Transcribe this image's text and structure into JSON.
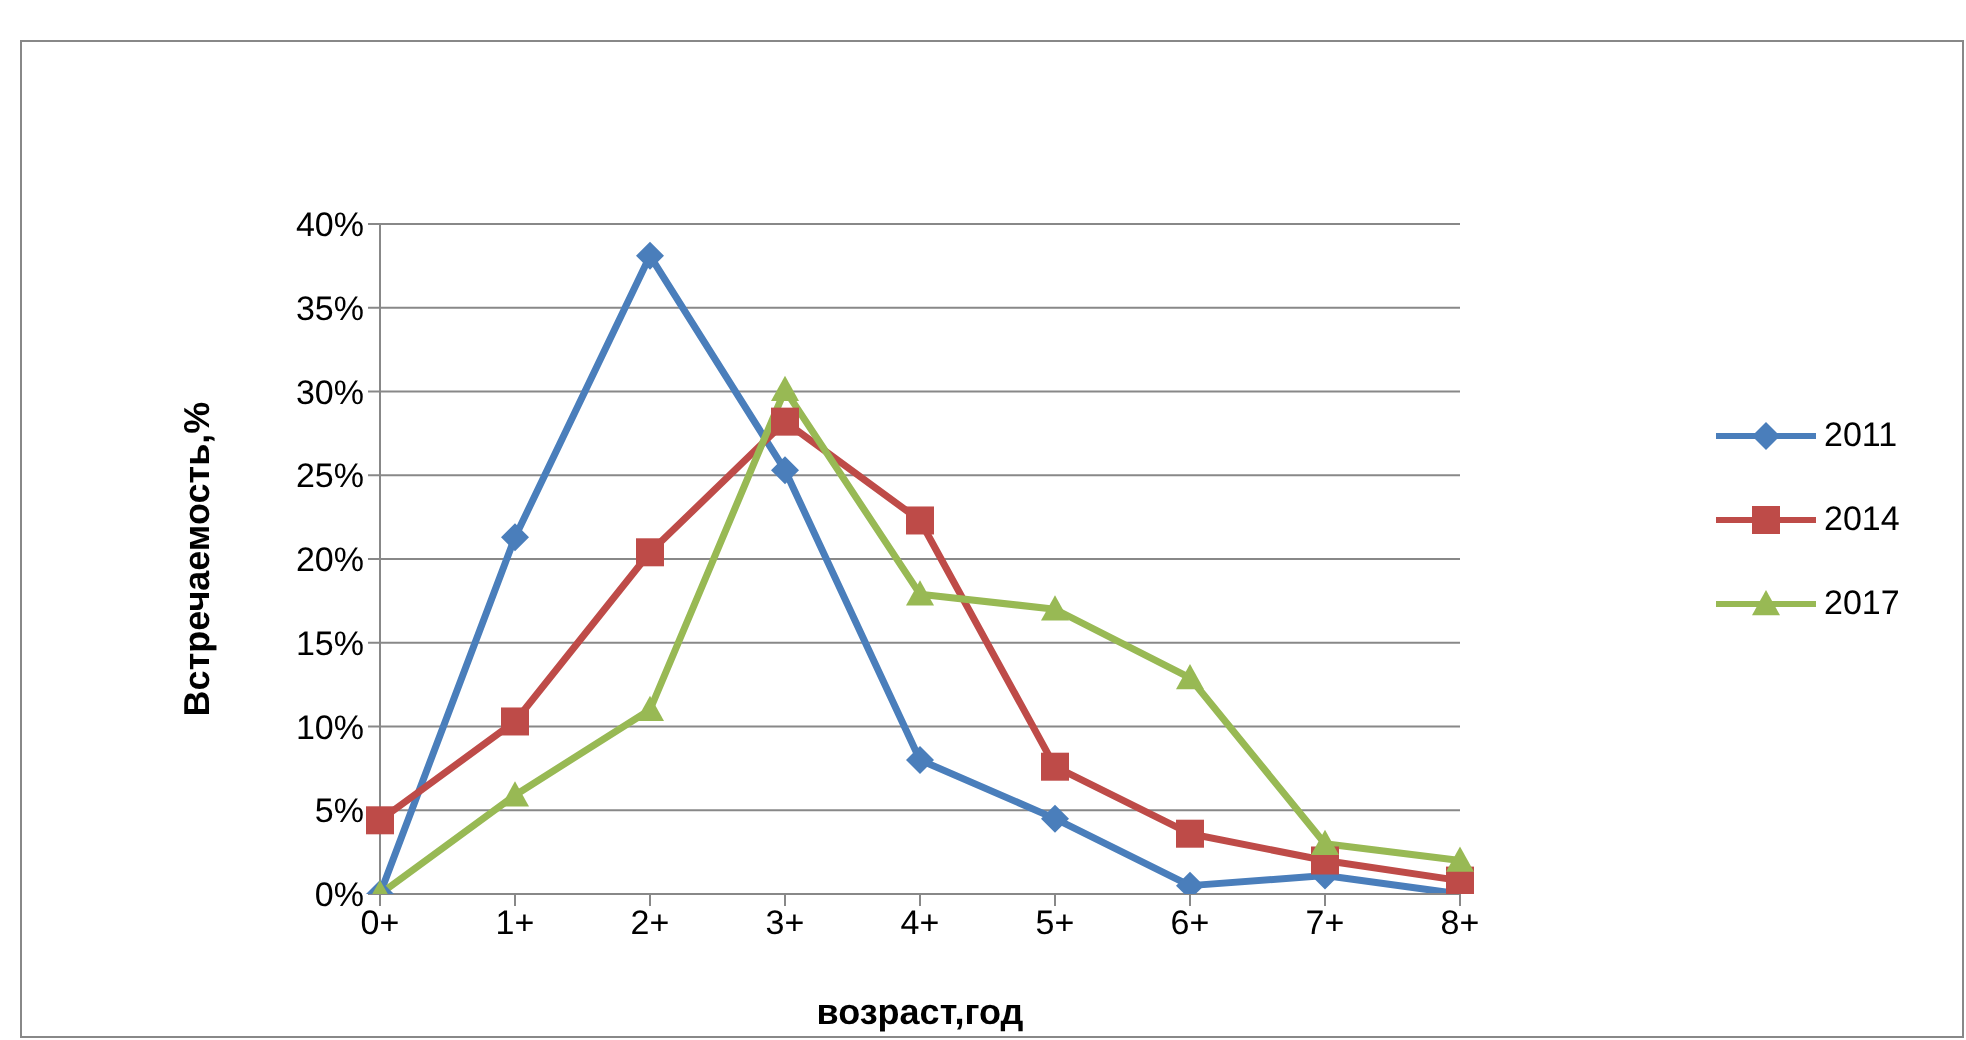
{
  "chart_data": {
    "type": "line",
    "xlabel": "возраст,год",
    "ylabel": "Встречаемость,%",
    "categories": [
      "0+",
      "1+",
      "2+",
      "3+",
      "4+",
      "5+",
      "6+",
      "7+",
      "8+"
    ],
    "series": [
      {
        "name": "2011",
        "color": "#4a7ebb",
        "marker": "diamond",
        "values": [
          0,
          21.3,
          38.1,
          25.3,
          8.0,
          4.5,
          0.5,
          1.1,
          0
        ]
      },
      {
        "name": "2014",
        "color": "#be4b48",
        "marker": "square",
        "values": [
          4.4,
          10.3,
          20.4,
          28.2,
          22.3,
          7.6,
          3.6,
          2.0,
          0.8
        ]
      },
      {
        "name": "2017",
        "color": "#98b954",
        "marker": "triangle",
        "values": [
          0,
          5.9,
          11,
          30.1,
          17.9,
          17,
          12.9,
          3,
          2
        ]
      }
    ],
    "ylim": [
      0,
      40
    ],
    "yticks": [
      {
        "value": 0,
        "label": "0%"
      },
      {
        "value": 5,
        "label": "5%"
      },
      {
        "value": 10,
        "label": "10%"
      },
      {
        "value": 15,
        "label": "15%"
      },
      {
        "value": 20,
        "label": "20%"
      },
      {
        "value": 25,
        "label": "25%"
      },
      {
        "value": 30,
        "label": "30%"
      },
      {
        "value": 35,
        "label": "35%"
      },
      {
        "value": 40,
        "label": "40%"
      }
    ],
    "grid": "y",
    "legend": "right",
    "line_style": "solid"
  }
}
